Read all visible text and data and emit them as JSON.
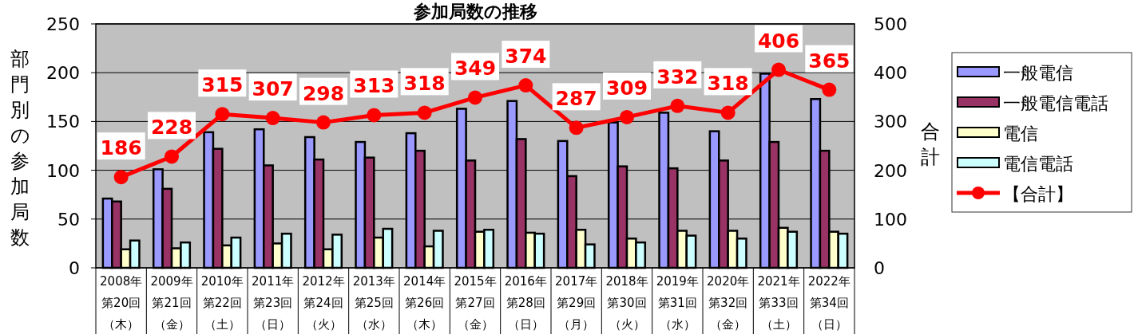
{
  "chart_data": {
    "type": "bar",
    "title": "参加局数の推移",
    "ylabel": "部門別の参加局数",
    "y2label": "合計",
    "categories": [
      "2008年第20回（木）",
      "2009年第21回（金）",
      "2010年第22回（土）",
      "2011年第23回（日）",
      "2012年第24回（火）",
      "2013年第25回（水）",
      "2014年第26回（木）",
      "2015年第27回（金）",
      "2016年第28回（日）",
      "2017年第29回（月）",
      "2018年第30回（火）",
      "2019年第31回（水）",
      "2020年第32回（金）",
      "2021年第33回（土）",
      "2022年第34回（日）"
    ],
    "series": [
      {
        "name": "一般電信",
        "color": "#9999ff",
        "values": [
          71,
          101,
          139,
          142,
          134,
          129,
          138,
          163,
          171,
          130,
          149,
          159,
          140,
          199,
          173
        ]
      },
      {
        "name": "一般電信電話",
        "color": "#993366",
        "values": [
          68,
          81,
          122,
          105,
          111,
          113,
          120,
          110,
          132,
          94,
          104,
          102,
          110,
          129,
          120
        ]
      },
      {
        "name": "電信",
        "color": "#ffffcc",
        "values": [
          19,
          20,
          23,
          25,
          19,
          31,
          22,
          37,
          36,
          39,
          30,
          38,
          38,
          41,
          37
        ]
      },
      {
        "name": "電信電話",
        "color": "#ccffff",
        "values": [
          28,
          26,
          31,
          35,
          34,
          40,
          38,
          39,
          35,
          24,
          26,
          33,
          30,
          37,
          35
        ]
      },
      {
        "name": "【合計】",
        "type": "line",
        "axis": "y2",
        "marker": "circle",
        "data_labels": true,
        "color": "#ff0000",
        "values": [
          186,
          228,
          315,
          307,
          298,
          313,
          318,
          349,
          374,
          287,
          309,
          332,
          318,
          406,
          365
        ]
      }
    ],
    "ylim": [
      0,
      250
    ],
    "yticks": [
      0,
      50,
      100,
      150,
      200,
      250
    ],
    "y2lim": [
      0,
      500
    ],
    "y2ticks": [
      0,
      100,
      200,
      300,
      400,
      500
    ],
    "grid": "y",
    "legend": "right"
  }
}
